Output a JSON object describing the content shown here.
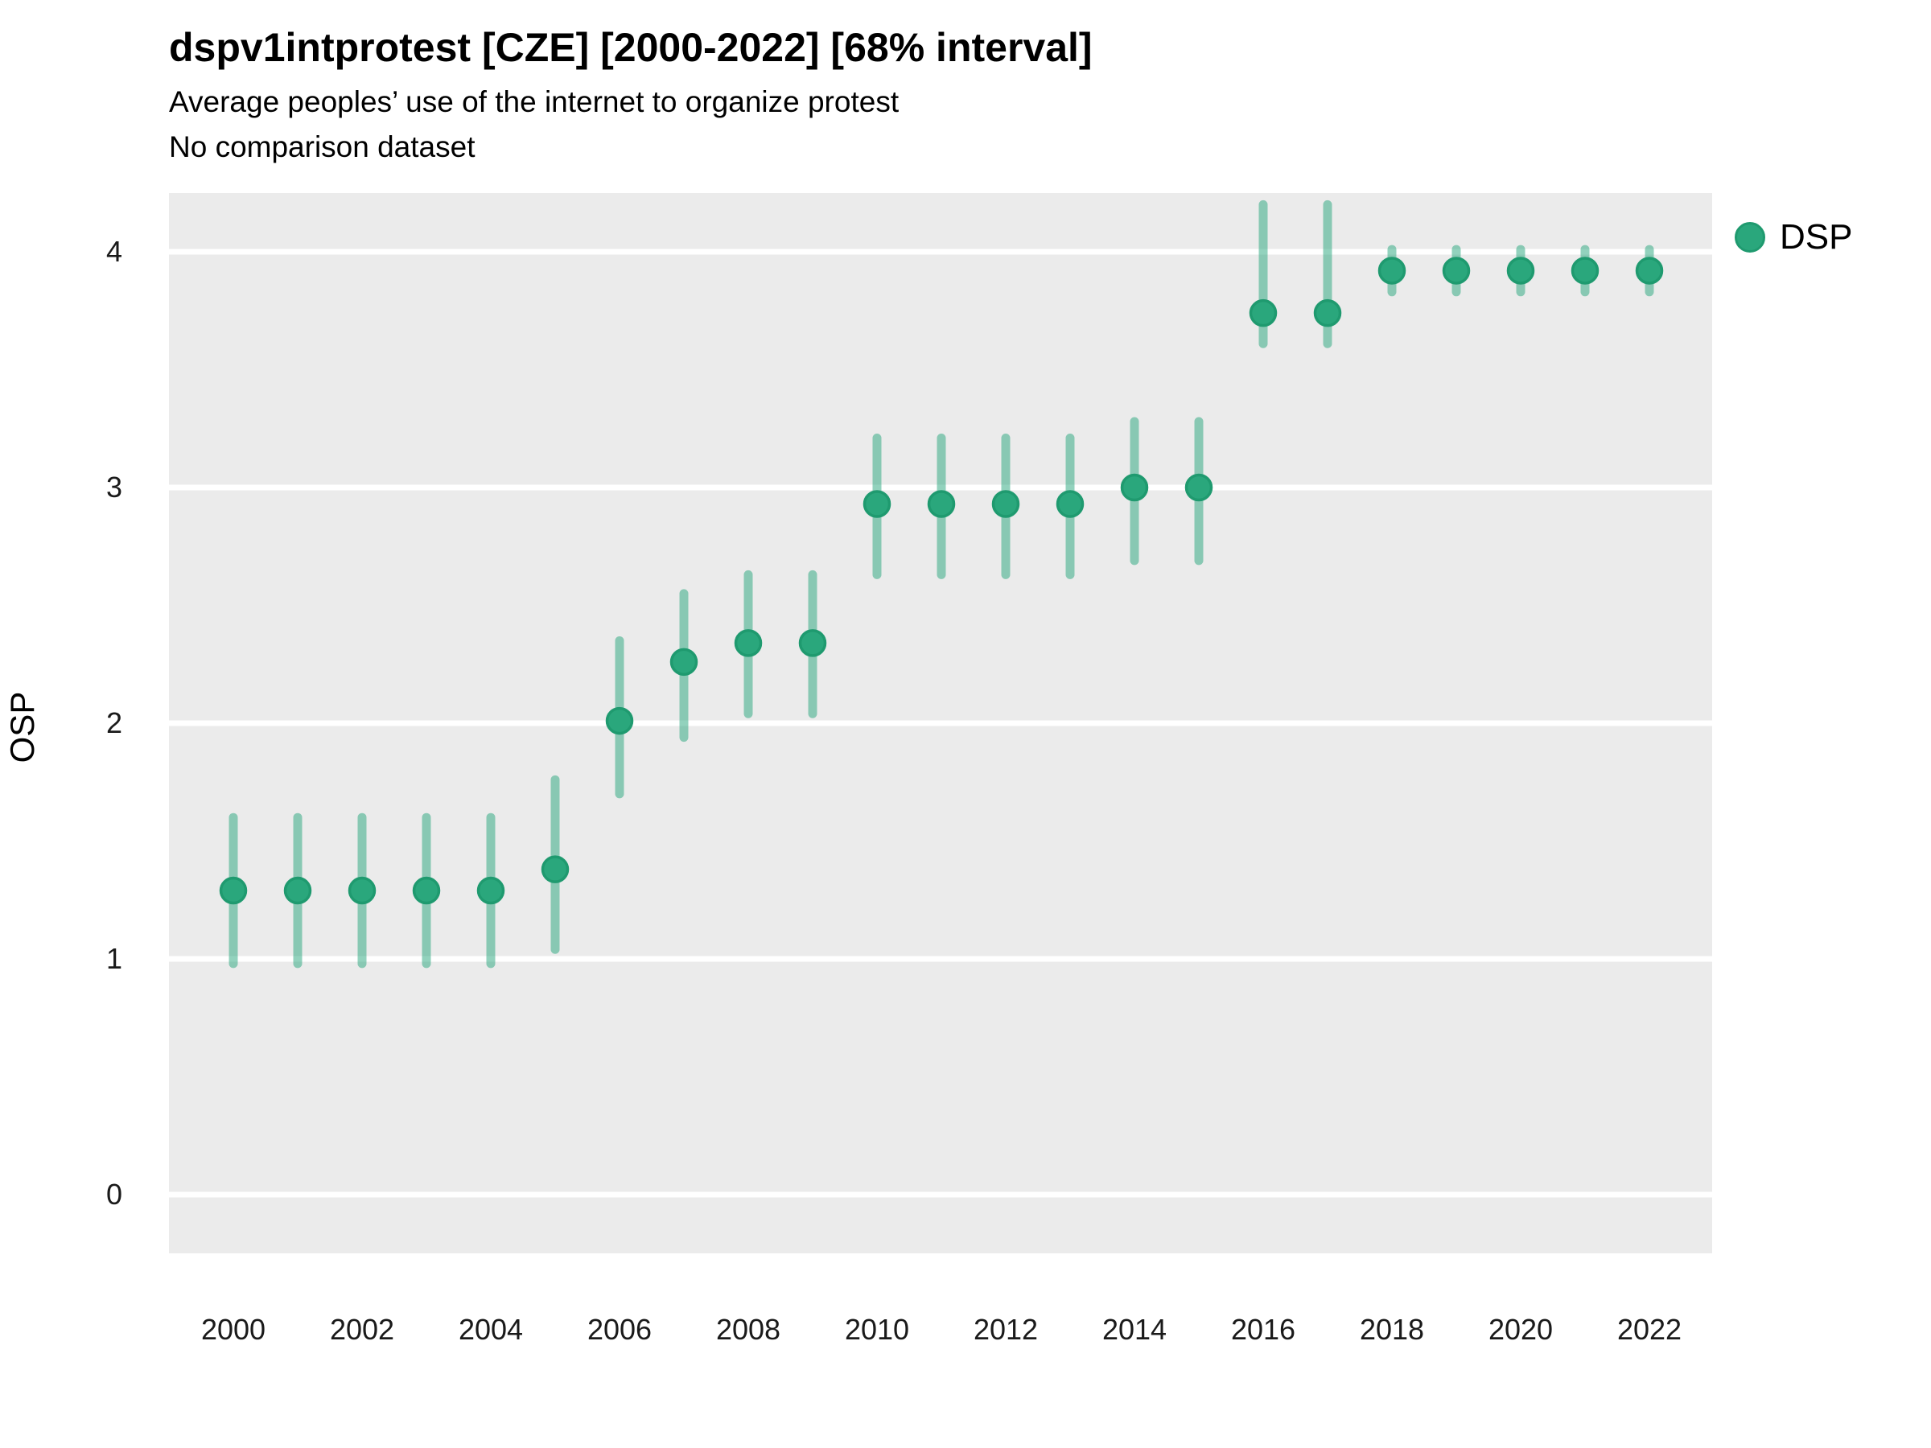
{
  "header": {
    "title": "dspv1intprotest [CZE] [2000-2022] [68% interval]",
    "subtitle": "Average peoples’ use of the internet to organize protest",
    "note": "No comparison dataset"
  },
  "chart_data": {
    "type": "scatter",
    "subtype": "pointrange",
    "title": "dspv1intprotest [CZE] [2000-2022] [68% interval]",
    "subtitle": "Average peoples’ use of the internet to organize protest",
    "note": "No comparison dataset",
    "xlabel": "",
    "ylabel": "OSP",
    "legend": {
      "label": "DSP",
      "position": "right-top"
    },
    "grid": "horizontal-major-only",
    "xlim": [
      1999,
      2023
    ],
    "ylim": [
      -0.25,
      4.25
    ],
    "x_ticks": [
      2000,
      2002,
      2004,
      2006,
      2008,
      2010,
      2012,
      2014,
      2016,
      2018,
      2020,
      2022
    ],
    "y_ticks": [
      0,
      1,
      2,
      3,
      4
    ],
    "series": [
      {
        "name": "DSP",
        "points": [
          {
            "year": 2000,
            "value": 1.29,
            "lo": 0.98,
            "hi": 1.6
          },
          {
            "year": 2001,
            "value": 1.29,
            "lo": 0.98,
            "hi": 1.6
          },
          {
            "year": 2002,
            "value": 1.29,
            "lo": 0.98,
            "hi": 1.6
          },
          {
            "year": 2003,
            "value": 1.29,
            "lo": 0.98,
            "hi": 1.6
          },
          {
            "year": 2004,
            "value": 1.29,
            "lo": 0.98,
            "hi": 1.6
          },
          {
            "year": 2005,
            "value": 1.38,
            "lo": 1.04,
            "hi": 1.76
          },
          {
            "year": 2006,
            "value": 2.01,
            "lo": 1.7,
            "hi": 2.35
          },
          {
            "year": 2007,
            "value": 2.26,
            "lo": 1.94,
            "hi": 2.55
          },
          {
            "year": 2008,
            "value": 2.34,
            "lo": 2.04,
            "hi": 2.63
          },
          {
            "year": 2009,
            "value": 2.34,
            "lo": 2.04,
            "hi": 2.63
          },
          {
            "year": 2010,
            "value": 2.93,
            "lo": 2.63,
            "hi": 3.21
          },
          {
            "year": 2011,
            "value": 2.93,
            "lo": 2.63,
            "hi": 3.21
          },
          {
            "year": 2012,
            "value": 2.93,
            "lo": 2.63,
            "hi": 3.21
          },
          {
            "year": 2013,
            "value": 2.93,
            "lo": 2.63,
            "hi": 3.21
          },
          {
            "year": 2014,
            "value": 3.0,
            "lo": 2.69,
            "hi": 3.28
          },
          {
            "year": 2015,
            "value": 3.0,
            "lo": 2.69,
            "hi": 3.28
          },
          {
            "year": 2016,
            "value": 3.74,
            "lo": 3.61,
            "hi": 4.2
          },
          {
            "year": 2017,
            "value": 3.74,
            "lo": 3.61,
            "hi": 4.2
          },
          {
            "year": 2018,
            "value": 3.92,
            "lo": 3.83,
            "hi": 4.01
          },
          {
            "year": 2019,
            "value": 3.92,
            "lo": 3.83,
            "hi": 4.01
          },
          {
            "year": 2020,
            "value": 3.92,
            "lo": 3.83,
            "hi": 4.01
          },
          {
            "year": 2021,
            "value": 3.92,
            "lo": 3.83,
            "hi": 4.01
          },
          {
            "year": 2022,
            "value": 3.92,
            "lo": 3.83,
            "hi": 4.01
          }
        ]
      }
    ],
    "colors": {
      "point_fill": "#2AA77C",
      "point_stroke": "#1F9A6F",
      "interval": "rgba(38,165,123,0.5)",
      "panel_background": "#EBEBEB",
      "gridline": "#FFFFFF"
    }
  }
}
